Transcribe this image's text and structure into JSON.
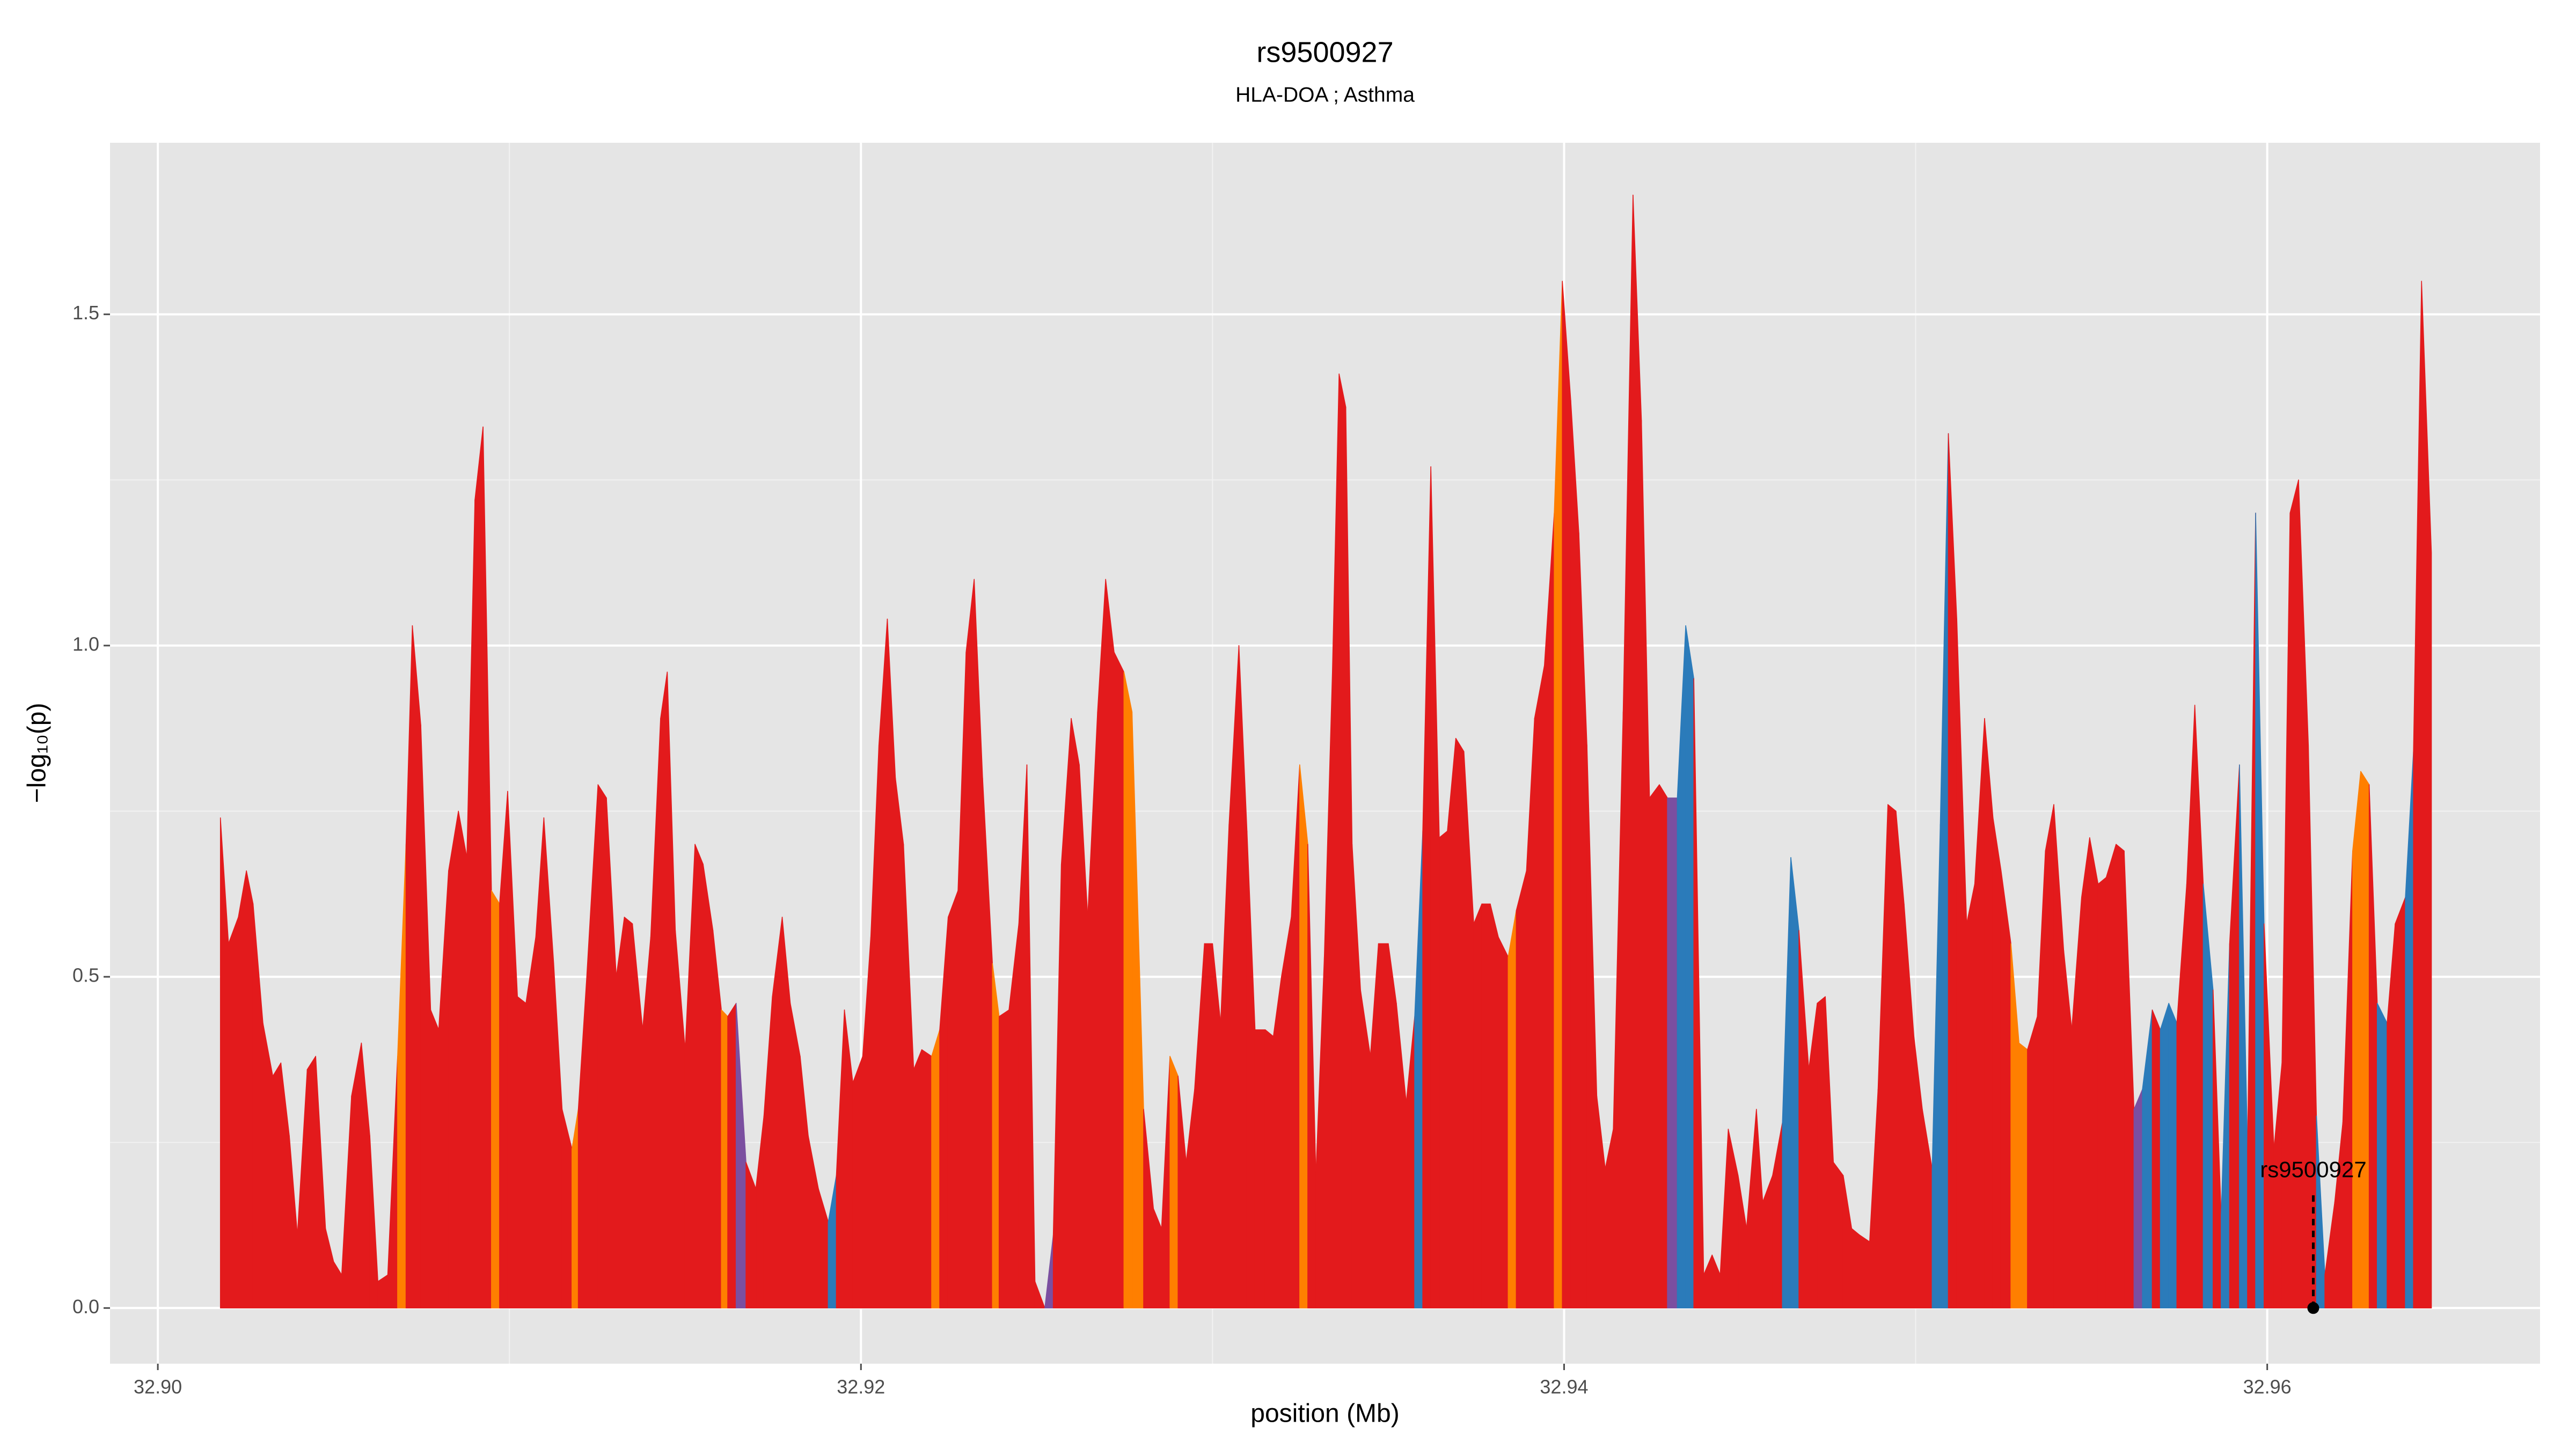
{
  "chart_data": {
    "type": "area",
    "title": "rs9500927",
    "subtitle": "HLA-DOA ; Asthma",
    "x_label": "position (Mb)",
    "y_label": "−log₁₀(p)",
    "xlim": [
      32.89864,
      32.96776
    ],
    "ylim": [
      -0.084,
      1.759
    ],
    "xticks": [
      {
        "value": 32.9,
        "label": "32.90"
      },
      {
        "value": 32.92,
        "label": "32.92"
      },
      {
        "value": 32.94,
        "label": "32.94"
      },
      {
        "value": 32.96,
        "label": "32.96"
      }
    ],
    "yticks": [
      {
        "value": 0,
        "label": "0.0"
      },
      0.5,
      {
        "value": 1,
        "label": "1.0"
      },
      1.5
    ],
    "grid": true,
    "annotation": {
      "text": "rs9500927",
      "x": 32.96131,
      "y": 0
    },
    "x": [
      32.90178,
      32.90201,
      32.90229,
      32.90252,
      32.90271,
      32.90299,
      32.90327,
      32.9035,
      32.90374,
      32.90397,
      32.90425,
      32.90449,
      32.90477,
      32.905,
      32.90523,
      32.90551,
      32.90579,
      32.90603,
      32.90626,
      32.90654,
      32.90682,
      32.90706,
      32.90724,
      32.90748,
      32.90776,
      32.90799,
      32.90827,
      32.90855,
      32.90879,
      32.90902,
      32.90925,
      32.90949,
      32.90972,
      32.90995,
      32.91023,
      32.91047,
      32.91075,
      32.91098,
      32.91126,
      32.9115,
      32.91178,
      32.91196,
      32.9122,
      32.91252,
      32.91276,
      32.91304,
      32.91327,
      32.9135,
      32.91379,
      32.91402,
      32.9143,
      32.91449,
      32.91472,
      32.915,
      32.91528,
      32.91551,
      32.91579,
      32.91603,
      32.91621,
      32.91645,
      32.91673,
      32.91701,
      32.91724,
      32.91748,
      32.91776,
      32.91799,
      32.91827,
      32.9185,
      32.91879,
      32.91907,
      32.9193,
      32.91953,
      32.91977,
      32.92005,
      32.92028,
      32.92051,
      32.92075,
      32.92098,
      32.92121,
      32.9215,
      32.92173,
      32.92201,
      32.92224,
      32.92248,
      32.92276,
      32.92299,
      32.92322,
      32.92346,
      32.92374,
      32.92393,
      32.92421,
      32.92449,
      32.92472,
      32.92495,
      32.92523,
      32.92547,
      32.9257,
      32.92598,
      32.92621,
      32.92645,
      32.92673,
      32.92696,
      32.9272,
      32.92748,
      32.92771,
      32.92804,
      32.92832,
      32.92855,
      32.92879,
      32.92902,
      32.92925,
      32.92949,
      32.92977,
      32.93,
      32.93023,
      32.93047,
      32.93075,
      32.93098,
      32.93121,
      32.9315,
      32.93173,
      32.93196,
      32.93224,
      32.93248,
      32.93271,
      32.93294,
      32.93318,
      32.93341,
      32.9336,
      32.93379,
      32.93397,
      32.93421,
      32.93449,
      32.93472,
      32.935,
      32.93523,
      32.93551,
      32.93575,
      32.93598,
      32.93621,
      32.93645,
      32.93668,
      32.93692,
      32.93715,
      32.93743,
      32.93766,
      32.9379,
      32.93813,
      32.93841,
      32.93864,
      32.93893,
      32.93916,
      32.93944,
      32.93972,
      32.93995,
      32.94019,
      32.94042,
      32.94065,
      32.94093,
      32.94117,
      32.9414,
      32.94168,
      32.94196,
      32.9422,
      32.94243,
      32.94271,
      32.94294,
      32.94322,
      32.94346,
      32.94369,
      32.94397,
      32.94421,
      32.94444,
      32.94467,
      32.94495,
      32.94519,
      32.94547,
      32.94565,
      32.94593,
      32.94621,
      32.94645,
      32.94668,
      32.94696,
      32.9472,
      32.94743,
      32.94766,
      32.94794,
      32.94818,
      32.94841,
      32.94869,
      32.94893,
      32.94921,
      32.94944,
      32.94967,
      32.94995,
      32.95019,
      32.95047,
      32.9507,
      32.95093,
      32.95117,
      32.95145,
      32.95168,
      32.95196,
      32.9522,
      32.95243,
      32.95271,
      32.95294,
      32.95318,
      32.95346,
      32.95369,
      32.95393,
      32.95421,
      32.95444,
      32.95472,
      32.95495,
      32.95519,
      32.95542,
      32.9557,
      32.95593,
      32.95621,
      32.95645,
      32.95673,
      32.95696,
      32.9572,
      32.95743,
      32.95771,
      32.95794,
      32.95818,
      32.95846,
      32.95869,
      32.95893,
      32.95921,
      32.95944,
      32.95967,
      32.95991,
      32.96019,
      32.96042,
      32.96065,
      32.96089,
      32.96117,
      32.9614,
      32.96164,
      32.96192,
      32.96215,
      32.96243,
      32.96266,
      32.9629,
      32.96313,
      32.96341,
      32.96364,
      32.96393,
      32.96416,
      32.96439,
      32.96467
    ],
    "values": [
      0.74,
      0.55,
      0.59,
      0.66,
      0.61,
      0.43,
      0.35,
      0.37,
      0.26,
      0.11,
      0.36,
      0.38,
      0.12,
      0.07,
      0.05,
      0.32,
      0.4,
      0.26,
      0.04,
      0.05,
      0.38,
      0.7,
      1.03,
      0.88,
      0.45,
      0.42,
      0.66,
      0.75,
      0.68,
      1.22,
      1.33,
      0.63,
      0.61,
      0.78,
      0.47,
      0.46,
      0.56,
      0.74,
      0.52,
      0.3,
      0.24,
      0.3,
      0.5,
      0.79,
      0.77,
      0.5,
      0.59,
      0.58,
      0.42,
      0.56,
      0.89,
      0.96,
      0.57,
      0.39,
      0.7,
      0.67,
      0.57,
      0.45,
      0.44,
      0.46,
      0.22,
      0.18,
      0.29,
      0.47,
      0.59,
      0.46,
      0.38,
      0.26,
      0.18,
      0.13,
      0.2,
      0.45,
      0.34,
      0.38,
      0.56,
      0.85,
      1.04,
      0.8,
      0.7,
      0.36,
      0.39,
      0.38,
      0.42,
      0.59,
      0.63,
      0.99,
      1.1,
      0.8,
      0.52,
      0.44,
      0.45,
      0.58,
      0.82,
      0.04,
      0.0,
      0.11,
      0.67,
      0.89,
      0.82,
      0.59,
      0.9,
      1.1,
      0.99,
      0.96,
      0.9,
      0.3,
      0.15,
      0.12,
      0.38,
      0.35,
      0.22,
      0.33,
      0.55,
      0.55,
      0.43,
      0.73,
      1.0,
      0.72,
      0.42,
      0.42,
      0.41,
      0.5,
      0.59,
      0.82,
      0.7,
      0.2,
      0.53,
      0.96,
      1.41,
      1.36,
      0.7,
      0.48,
      0.38,
      0.55,
      0.55,
      0.46,
      0.31,
      0.44,
      0.72,
      1.27,
      0.71,
      0.72,
      0.86,
      0.84,
      0.58,
      0.61,
      0.61,
      0.56,
      0.53,
      0.6,
      0.66,
      0.89,
      0.97,
      1.2,
      1.55,
      1.37,
      1.17,
      0.85,
      0.32,
      0.21,
      0.27,
      0.9,
      1.68,
      1.34,
      0.77,
      0.79,
      0.77,
      0.77,
      1.03,
      0.95,
      0.05,
      0.08,
      0.05,
      0.27,
      0.2,
      0.12,
      0.3,
      0.16,
      0.2,
      0.28,
      0.68,
      0.57,
      0.36,
      0.46,
      0.47,
      0.22,
      0.2,
      0.12,
      0.11,
      0.1,
      0.33,
      0.76,
      0.75,
      0.61,
      0.41,
      0.3,
      0.21,
      0.73,
      1.32,
      1.04,
      0.58,
      0.64,
      0.89,
      0.74,
      0.66,
      0.55,
      0.4,
      0.39,
      0.44,
      0.69,
      0.76,
      0.54,
      0.42,
      0.62,
      0.71,
      0.64,
      0.65,
      0.7,
      0.69,
      0.3,
      0.33,
      0.45,
      0.42,
      0.46,
      0.43,
      0.64,
      0.91,
      0.64,
      0.48,
      0.14,
      0.55,
      0.82,
      0.24,
      1.2,
      0.58,
      0.24,
      0.37,
      1.2,
      1.25,
      0.85,
      0.29,
      0.05,
      0.16,
      0.28,
      0.69,
      0.81,
      0.79,
      0.46,
      0.43,
      0.58,
      0.62,
      0.84,
      1.55,
      1.14
    ],
    "colors": [
      "#e31a1c",
      "#e31a1c",
      "#e31a1c",
      "#e31a1c",
      "#e31a1c",
      "#e31a1c",
      "#e31a1c",
      "#e31a1c",
      "#e31a1c",
      "#e31a1c",
      "#e31a1c",
      "#e31a1c",
      "#e31a1c",
      "#e31a1c",
      "#e31a1c",
      "#e31a1c",
      "#e31a1c",
      "#e31a1c",
      "#e31a1c",
      "#e31a1c",
      "#ff7f00",
      "#e31a1c",
      "#e31a1c",
      "#e31a1c",
      "#e31a1c",
      "#e31a1c",
      "#e31a1c",
      "#e31a1c",
      "#e31a1c",
      "#e31a1c",
      "#e31a1c",
      "#ff7f00",
      "#e31a1c",
      "#e31a1c",
      "#e31a1c",
      "#e31a1c",
      "#e31a1c",
      "#e31a1c",
      "#e31a1c",
      "#e31a1c",
      "#ff7f00",
      "#e31a1c",
      "#e31a1c",
      "#e31a1c",
      "#e31a1c",
      "#e31a1c",
      "#e31a1c",
      "#e31a1c",
      "#e31a1c",
      "#e31a1c",
      "#e31a1c",
      "#e31a1c",
      "#e31a1c",
      "#e31a1c",
      "#e31a1c",
      "#e31a1c",
      "#e31a1c",
      "#ff7f00",
      "#e31a1c",
      "#7b4fa0",
      "#e31a1c",
      "#e31a1c",
      "#e31a1c",
      "#e31a1c",
      "#e31a1c",
      "#e31a1c",
      "#e31a1c",
      "#e31a1c",
      "#e31a1c",
      "#2b7bba",
      "#e31a1c",
      "#e31a1c",
      "#e31a1c",
      "#e31a1c",
      "#e31a1c",
      "#e31a1c",
      "#e31a1c",
      "#e31a1c",
      "#e31a1c",
      "#e31a1c",
      "#e31a1c",
      "#ff7f00",
      "#e31a1c",
      "#e31a1c",
      "#e31a1c",
      "#e31a1c",
      "#e31a1c",
      "#e31a1c",
      "#ff7f00",
      "#e31a1c",
      "#e31a1c",
      "#e31a1c",
      "#e31a1c",
      "#e31a1c",
      "#7b4fa0",
      "#e31a1c",
      "#e31a1c",
      "#e31a1c",
      "#e31a1c",
      "#e31a1c",
      "#e31a1c",
      "#e31a1c",
      "#e31a1c",
      "#ff7f00",
      "#ff7f00",
      "#e31a1c",
      "#e31a1c",
      "#e31a1c",
      "#ff7f00",
      "#e31a1c",
      "#e31a1c",
      "#e31a1c",
      "#e31a1c",
      "#e31a1c",
      "#e31a1c",
      "#e31a1c",
      "#e31a1c",
      "#e31a1c",
      "#e31a1c",
      "#e31a1c",
      "#e31a1c",
      "#e31a1c",
      "#e31a1c",
      "#ff7f00",
      "#e31a1c",
      "#e31a1c",
      "#e31a1c",
      "#e31a1c",
      "#e31a1c",
      "#e31a1c",
      "#e31a1c",
      "#e31a1c",
      "#e31a1c",
      "#e31a1c",
      "#e31a1c",
      "#e31a1c",
      "#e31a1c",
      "#2b7bba",
      "#e31a1c",
      "#e31a1c",
      "#e31a1c",
      "#e31a1c",
      "#e31a1c",
      "#e31a1c",
      "#e31a1c",
      "#e31a1c",
      "#e31a1c",
      "#e31a1c",
      "#ff7f00",
      "#e31a1c",
      "#e31a1c",
      "#e31a1c",
      "#e31a1c",
      "#ff7f00",
      "#e31a1c",
      "#e31a1c",
      "#e31a1c",
      "#e31a1c",
      "#e31a1c",
      "#e31a1c",
      "#e31a1c",
      "#e31a1c",
      "#e31a1c",
      "#e31a1c",
      "#e31a1c",
      "#e31a1c",
      "#7b4fa0",
      "#2b7bba",
      "#2b7bba",
      "#e31a1c",
      "#e31a1c",
      "#e31a1c",
      "#e31a1c",
      "#e31a1c",
      "#e31a1c",
      "#e31a1c",
      "#e31a1c",
      "#e31a1c",
      "#e31a1c",
      "#2b7bba",
      "#2b7bba",
      "#e31a1c",
      "#e31a1c",
      "#e31a1c",
      "#e31a1c",
      "#e31a1c",
      "#e31a1c",
      "#e31a1c",
      "#e31a1c",
      "#e31a1c",
      "#e31a1c",
      "#e31a1c",
      "#e31a1c",
      "#e31a1c",
      "#e31a1c",
      "#e31a1c",
      "#2b7bba",
      "#2b7bba",
      "#e31a1c",
      "#e31a1c",
      "#e31a1c",
      "#e31a1c",
      "#e31a1c",
      "#e31a1c",
      "#e31a1c",
      "#ff7f00",
      "#ff7f00",
      "#e31a1c",
      "#e31a1c",
      "#e31a1c",
      "#e31a1c",
      "#e31a1c",
      "#e31a1c",
      "#e31a1c",
      "#e31a1c",
      "#e31a1c",
      "#e31a1c",
      "#e31a1c",
      "#e31a1c",
      "#7b4fa0",
      "#2b7bba",
      "#e31a1c",
      "#2b7bba",
      "#2b7bba",
      "#e31a1c",
      "#e31a1c",
      "#e31a1c",
      "#2b7bba",
      "#e31a1c",
      "#2b7bba",
      "#e31a1c",
      "#2b7bba",
      "#e31a1c",
      "#2b7bba",
      "#e31a1c",
      "#e31a1c",
      "#e31a1c",
      "#e31a1c",
      "#e31a1c",
      "#e31a1c",
      "#2b7bba",
      "#e31a1c",
      "#e31a1c",
      "#e31a1c",
      "#ff7f00",
      "#ff7f00",
      "#e31a1c",
      "#2b7bba",
      "#e31a1c",
      "#e31a1c",
      "#2b7bba",
      "#e31a1c",
      "#e31a1c",
      "#e31a1c"
    ]
  }
}
